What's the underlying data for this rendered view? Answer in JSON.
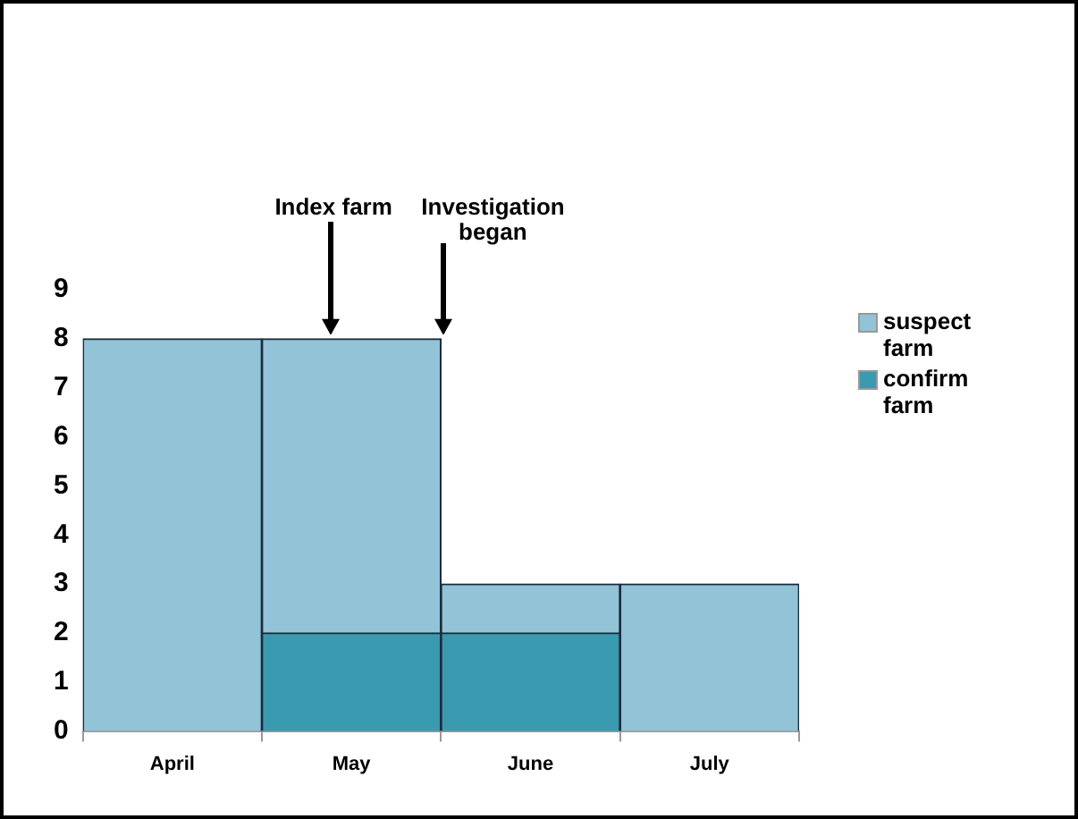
{
  "chart_data": {
    "type": "bar",
    "stacked": true,
    "categories": [
      "April",
      "May",
      "June",
      "July"
    ],
    "series": [
      {
        "name": "confirm farm",
        "color": "#3a9ab0",
        "values": [
          0,
          2,
          2,
          0
        ]
      },
      {
        "name": "suspect farm",
        "color": "#92c3d6",
        "values": [
          8,
          6,
          1,
          3
        ]
      }
    ],
    "ylim": [
      0,
      9
    ],
    "yticks": [
      0,
      1,
      2,
      3,
      4,
      5,
      6,
      7,
      8,
      9
    ],
    "grid": false,
    "legend": "right",
    "annotations": [
      "Index farm",
      "Investigation began"
    ]
  }
}
